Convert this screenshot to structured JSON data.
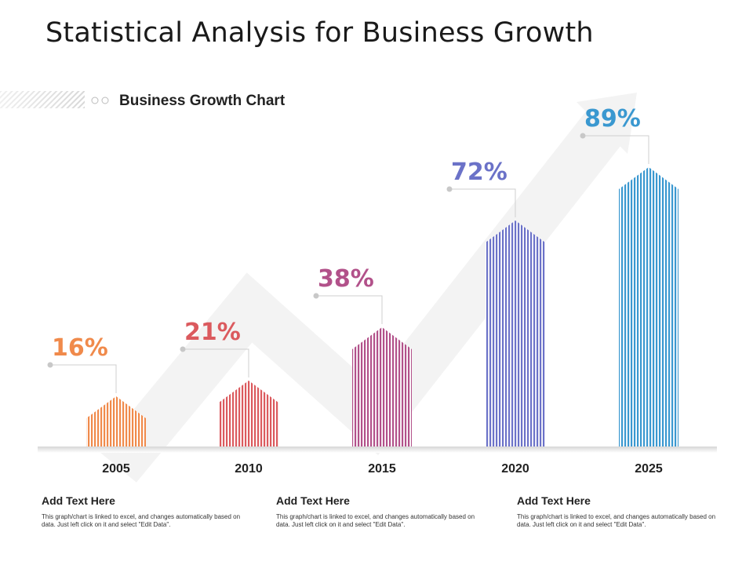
{
  "title": "Statistical Analysis for Business Growth",
  "chart_heading": "Business Growth Chart",
  "chart_data": {
    "type": "bar",
    "title": "Business Growth Chart",
    "categories": [
      "2005",
      "2010",
      "2015",
      "2020",
      "2025"
    ],
    "values": [
      16,
      21,
      38,
      72,
      89
    ],
    "value_labels": [
      "16%",
      "21%",
      "38%",
      "72%",
      "89%"
    ],
    "colors": [
      "#f08a4b",
      "#db5a5e",
      "#b2518a",
      "#6b72c8",
      "#3a98d0"
    ],
    "unit": "%",
    "ylim": [
      0,
      100
    ],
    "grid": false,
    "legend": "none"
  },
  "footer": [
    {
      "heading": "Add Text Here",
      "body": "This graph/chart is linked to excel, and changes automatically based on data. Just left click on it and select \"Edit Data\"."
    },
    {
      "heading": "Add Text Here",
      "body": "This graph/chart is linked to excel, and changes automatically based on data. Just left click on it and select \"Edit Data\"."
    },
    {
      "heading": "Add Text Here",
      "body": "This graph/chart is linked to excel, and changes automatically based on data. Just left click on it and select \"Edit Data\"."
    }
  ]
}
